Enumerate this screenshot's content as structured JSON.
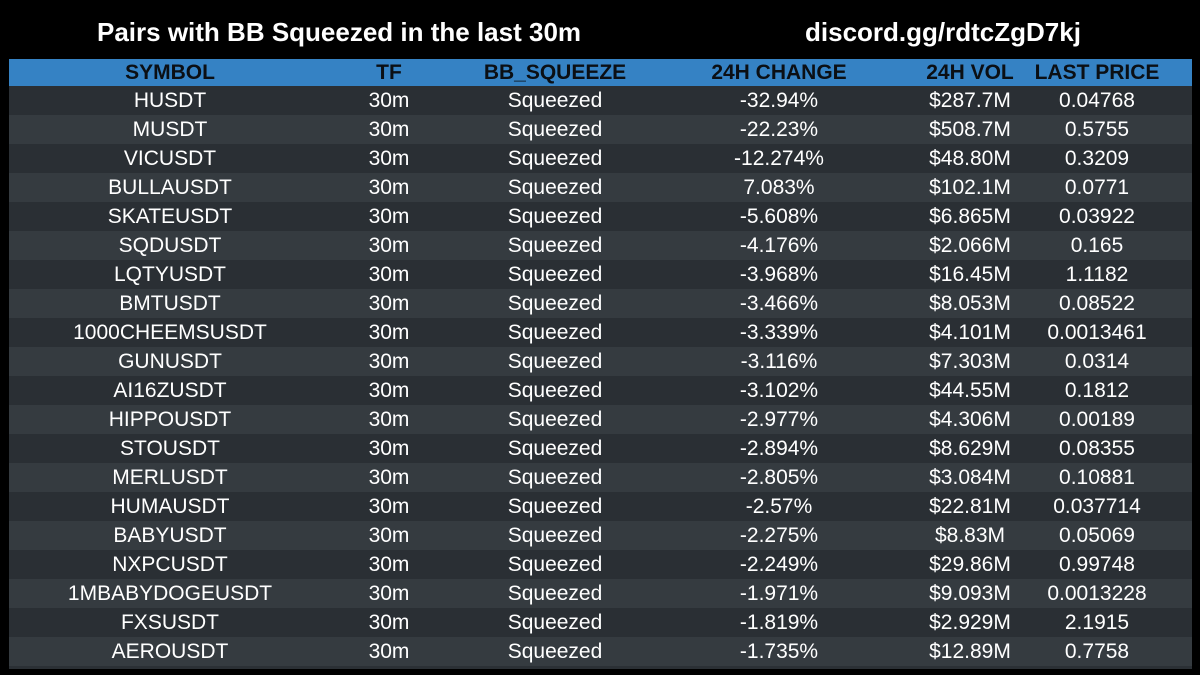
{
  "header": {
    "title": "Pairs with BB Squeezed in the last 30m",
    "discord": "discord.gg/rdtcZgD7kj"
  },
  "colors": {
    "background": "#000000",
    "header_row": "#3582c4",
    "row_even": "#353b40",
    "row_odd": "#2a2f34",
    "text": "#ffffff"
  },
  "table": {
    "columns": [
      "SYMBOL",
      "TF",
      "BB_SQUEEZE",
      "24H CHANGE",
      "24H VOL",
      "LAST PRICE"
    ],
    "rows": [
      [
        "HUSDT",
        "30m",
        "Squeezed",
        "-32.94%",
        "$287.7M",
        "0.04768"
      ],
      [
        "MUSDT",
        "30m",
        "Squeezed",
        "-22.23%",
        "$508.7M",
        "0.5755"
      ],
      [
        "VICUSDT",
        "30m",
        "Squeezed",
        "-12.274%",
        "$48.80M",
        "0.3209"
      ],
      [
        "BULLAUSDT",
        "30m",
        "Squeezed",
        "7.083%",
        "$102.1M",
        "0.0771"
      ],
      [
        "SKATEUSDT",
        "30m",
        "Squeezed",
        "-5.608%",
        "$6.865M",
        "0.03922"
      ],
      [
        "SQDUSDT",
        "30m",
        "Squeezed",
        "-4.176%",
        "$2.066M",
        "0.165"
      ],
      [
        "LQTYUSDT",
        "30m",
        "Squeezed",
        "-3.968%",
        "$16.45M",
        "1.1182"
      ],
      [
        "BMTUSDT",
        "30m",
        "Squeezed",
        "-3.466%",
        "$8.053M",
        "0.08522"
      ],
      [
        "1000CHEEMSUSDT",
        "30m",
        "Squeezed",
        "-3.339%",
        "$4.101M",
        "0.0013461"
      ],
      [
        "GUNUSDT",
        "30m",
        "Squeezed",
        "-3.116%",
        "$7.303M",
        "0.0314"
      ],
      [
        "AI16ZUSDT",
        "30m",
        "Squeezed",
        "-3.102%",
        "$44.55M",
        "0.1812"
      ],
      [
        "HIPPOUSDT",
        "30m",
        "Squeezed",
        "-2.977%",
        "$4.306M",
        "0.00189"
      ],
      [
        "STOUSDT",
        "30m",
        "Squeezed",
        "-2.894%",
        "$8.629M",
        "0.08355"
      ],
      [
        "MERLUSDT",
        "30m",
        "Squeezed",
        "-2.805%",
        "$3.084M",
        "0.10881"
      ],
      [
        "HUMAUSDT",
        "30m",
        "Squeezed",
        "-2.57%",
        "$22.81M",
        "0.037714"
      ],
      [
        "BABYUSDT",
        "30m",
        "Squeezed",
        "-2.275%",
        "$8.83M",
        "0.05069"
      ],
      [
        "NXPCUSDT",
        "30m",
        "Squeezed",
        "-2.249%",
        "$29.86M",
        "0.99748"
      ],
      [
        "1MBABYDOGEUSDT",
        "30m",
        "Squeezed",
        "-1.971%",
        "$9.093M",
        "0.0013228"
      ],
      [
        "FXSUSDT",
        "30m",
        "Squeezed",
        "-1.819%",
        "$2.929M",
        "2.1915"
      ],
      [
        "AEROUSDT",
        "30m",
        "Squeezed",
        "-1.735%",
        "$12.89M",
        "0.7758"
      ]
    ]
  }
}
